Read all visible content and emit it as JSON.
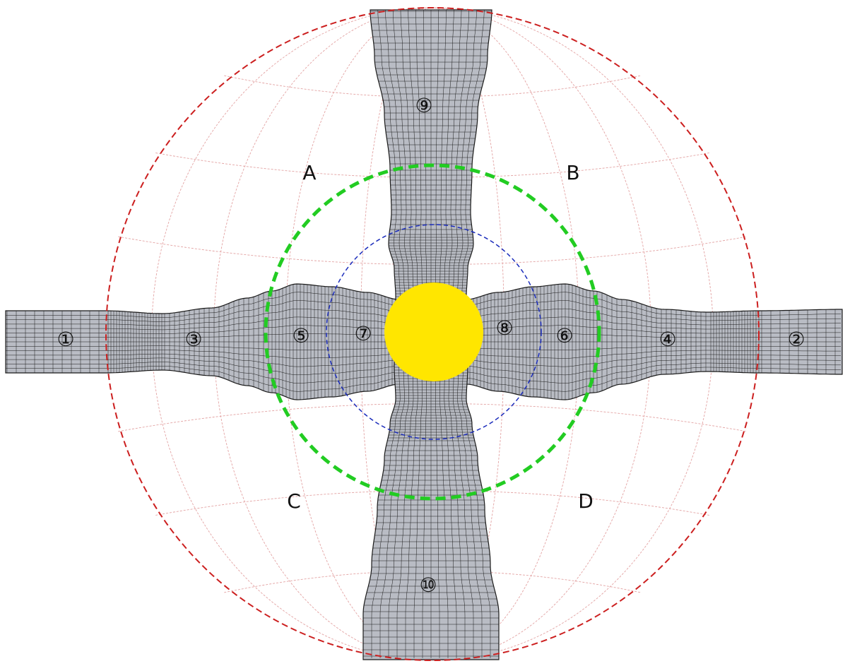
{
  "diagram": {
    "quadrants": [
      {
        "id": "A",
        "label": "A"
      },
      {
        "id": "B",
        "label": "B"
      },
      {
        "id": "C",
        "label": "C"
      },
      {
        "id": "D",
        "label": "D"
      }
    ],
    "blocks": [
      {
        "id": 1,
        "label": "①"
      },
      {
        "id": 2,
        "label": "②"
      },
      {
        "id": 3,
        "label": "③"
      },
      {
        "id": 4,
        "label": "④"
      },
      {
        "id": 5,
        "label": "⑤"
      },
      {
        "id": 6,
        "label": "⑥"
      },
      {
        "id": 7,
        "label": "⑦"
      },
      {
        "id": 8,
        "label": "⑧"
      },
      {
        "id": 9,
        "label": "⑨"
      },
      {
        "id": 10,
        "label": "⑩"
      }
    ],
    "colors": {
      "outer_circle": "#cc1f1f",
      "middle_circle": "#22cc22",
      "inner_circle": "#1a2bbb",
      "center_disc": "#ffe600",
      "mesh_fill": "#b9bcc4",
      "mesh_line": "#1a1a1a",
      "graticule": "#e3a3a3"
    }
  }
}
